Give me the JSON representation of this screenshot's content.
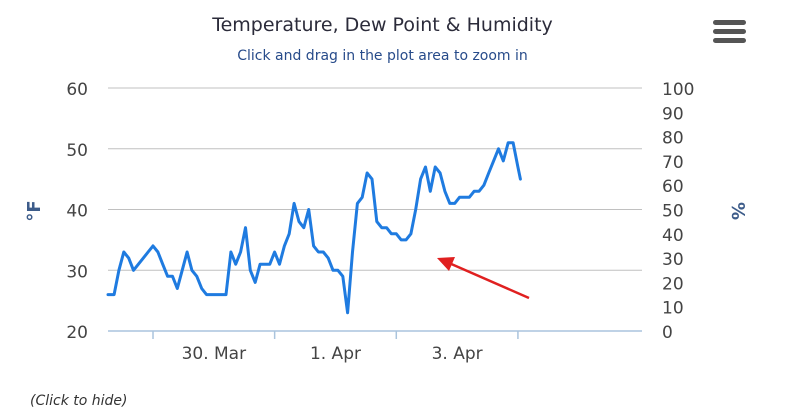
{
  "chart": {
    "title": "Temperature, Dew Point & Humidity",
    "subtitle": "Click and drag in the plot area to zoom in",
    "menu_icon": "hamburger-menu-icon",
    "legend_hint": "(Click to hide)"
  },
  "chart_data": {
    "type": "line",
    "title": "Temperature, Dew Point & Humidity",
    "ylabel": "°F",
    "ylabel_right": "%",
    "ylim": [
      20,
      60
    ],
    "yticks": [
      20,
      30,
      40,
      50,
      60
    ],
    "y2lim": [
      0,
      100
    ],
    "y2ticks": [
      0,
      10,
      20,
      30,
      40,
      50,
      60,
      70,
      80,
      90,
      100
    ],
    "xlim": [
      -0.87,
      3.52
    ],
    "xtick_labels": [
      "30. Mar",
      "1. Apr",
      "3. Apr"
    ],
    "xtick_values": [
      0,
      1,
      2
    ],
    "xtick_offset_days": 0.5,
    "grid": true,
    "series": [
      {
        "color": "#1f7be0",
        "x": [
          -0.87,
          -0.82,
          -0.78,
          -0.74,
          -0.7,
          -0.66,
          -0.62,
          -0.58,
          -0.54,
          -0.5,
          -0.46,
          -0.42,
          -0.38,
          -0.34,
          -0.3,
          -0.26,
          -0.22,
          -0.18,
          -0.14,
          -0.1,
          -0.06,
          -0.02,
          0.02,
          0.06,
          0.1,
          0.14,
          0.18,
          0.22,
          0.26,
          0.3,
          0.34,
          0.38,
          0.42,
          0.46,
          0.5,
          0.54,
          0.58,
          0.62,
          0.66,
          0.7,
          0.74,
          0.78,
          0.82,
          0.86,
          0.9,
          0.94,
          0.98,
          1.02,
          1.06,
          1.1,
          1.14,
          1.18,
          1.22,
          1.26,
          1.3,
          1.34,
          1.38,
          1.42,
          1.46,
          1.5,
          1.54,
          1.58,
          1.62,
          1.66,
          1.7,
          1.74,
          1.78,
          1.82,
          1.86,
          1.9,
          1.94,
          1.98,
          2.02,
          2.06,
          2.1,
          2.14,
          2.18,
          2.22,
          2.26,
          2.3,
          2.34,
          2.38,
          2.42,
          2.46,
          2.5,
          2.52
        ],
        "y": [
          26,
          26,
          30,
          33,
          32,
          30,
          31,
          32,
          33,
          34,
          33,
          31,
          29,
          29,
          27,
          30,
          33,
          30,
          29,
          27,
          26,
          26,
          26,
          26,
          26,
          33,
          31,
          33,
          37,
          30,
          28,
          31,
          31,
          31,
          33,
          31,
          34,
          36,
          41,
          38,
          37,
          40,
          34,
          33,
          33,
          32,
          30,
          30,
          29,
          23,
          33,
          41,
          42,
          46,
          45,
          38,
          37,
          37,
          36,
          36,
          35,
          35,
          36,
          40,
          45,
          47,
          43,
          47,
          46,
          43,
          41,
          41,
          42,
          42,
          42,
          43,
          43,
          44,
          46,
          48,
          50,
          48,
          51,
          51,
          47,
          45
        ]
      }
    ]
  }
}
